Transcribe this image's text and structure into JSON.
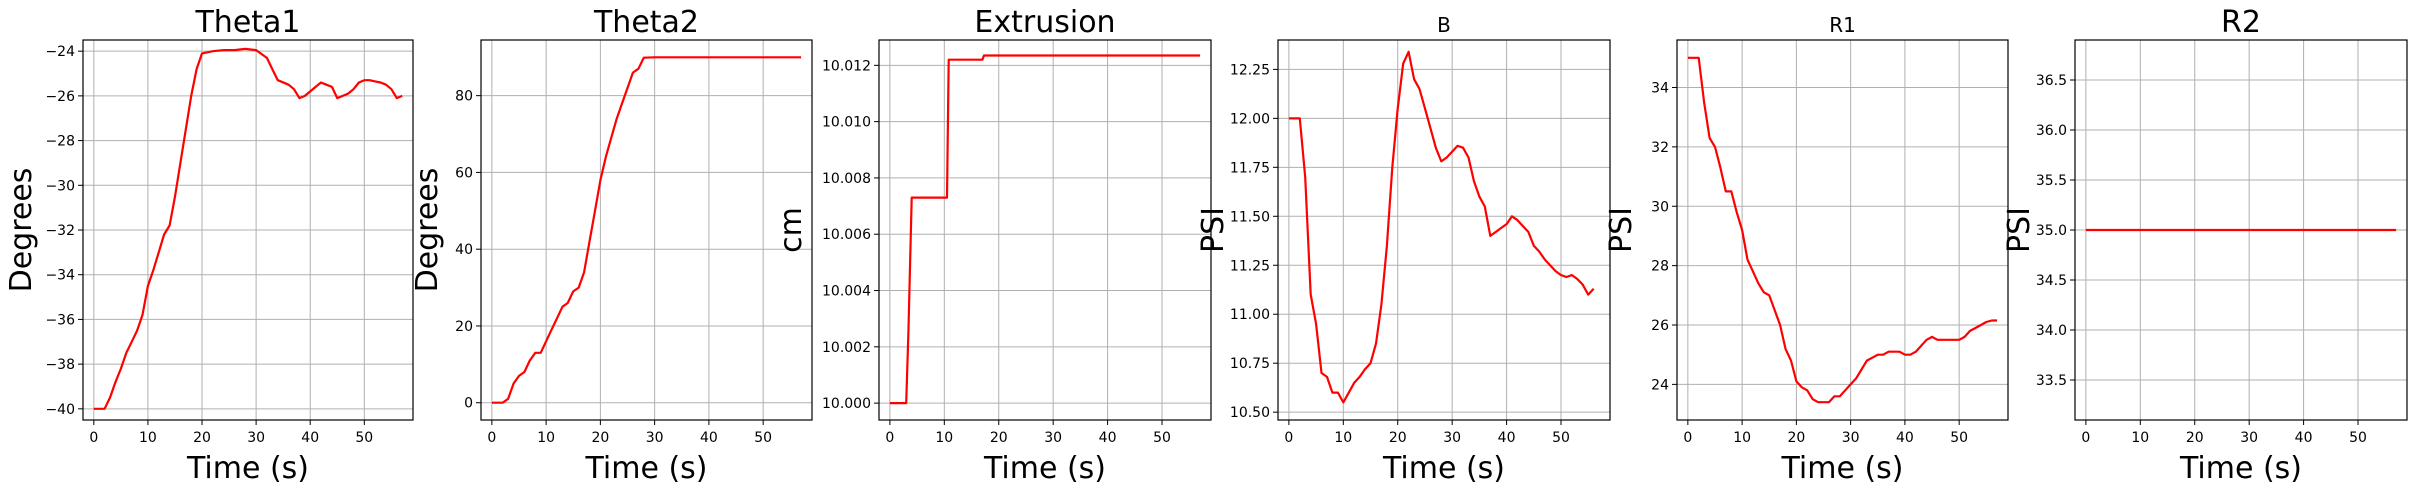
{
  "chart_data": [
    {
      "type": "line",
      "title": "Theta1",
      "xlabel": "Time (s)",
      "ylabel": "Degrees",
      "xlim": [
        -2,
        59
      ],
      "ylim": [
        -40.5,
        -23.5
      ],
      "xticks": [
        0,
        10,
        20,
        30,
        40,
        50
      ],
      "yticks": [
        -40,
        -38,
        -36,
        -34,
        -32,
        -30,
        -28,
        -26,
        -24
      ],
      "ytick_labels": [
        "−40",
        "−38",
        "−36",
        "−34",
        "−32",
        "−30",
        "−28",
        "−26",
        "−24"
      ],
      "grid": true,
      "series": [
        {
          "color": "#ff0000",
          "points": [
            [
              0,
              -40
            ],
            [
              2,
              -40
            ],
            [
              3,
              -39.5
            ],
            [
              4,
              -38.8
            ],
            [
              5,
              -38.2
            ],
            [
              6,
              -37.5
            ],
            [
              7,
              -37
            ],
            [
              8,
              -36.5
            ],
            [
              9,
              -35.8
            ],
            [
              10,
              -34.5
            ],
            [
              11,
              -33.8
            ],
            [
              12,
              -33
            ],
            [
              13,
              -32.2
            ],
            [
              14,
              -31.8
            ],
            [
              15,
              -30.5
            ],
            [
              16,
              -29
            ],
            [
              17,
              -27.5
            ],
            [
              18,
              -26
            ],
            [
              19,
              -24.8
            ],
            [
              20,
              -24.1
            ],
            [
              22,
              -24
            ],
            [
              24,
              -23.95
            ],
            [
              26,
              -23.95
            ],
            [
              28,
              -23.9
            ],
            [
              30,
              -23.95
            ],
            [
              32,
              -24.3
            ],
            [
              33,
              -24.8
            ],
            [
              34,
              -25.3
            ],
            [
              36,
              -25.5
            ],
            [
              37,
              -25.7
            ],
            [
              38,
              -26.1
            ],
            [
              39,
              -26.0
            ],
            [
              40,
              -25.8
            ],
            [
              41,
              -25.6
            ],
            [
              42,
              -25.4
            ],
            [
              43,
              -25.5
            ],
            [
              44,
              -25.6
            ],
            [
              45,
              -26.1
            ],
            [
              46,
              -26.0
            ],
            [
              47,
              -25.9
            ],
            [
              48,
              -25.7
            ],
            [
              49,
              -25.4
            ],
            [
              50,
              -25.3
            ],
            [
              51,
              -25.3
            ],
            [
              52,
              -25.35
            ],
            [
              53,
              -25.4
            ],
            [
              54,
              -25.5
            ],
            [
              55,
              -25.7
            ],
            [
              56,
              -26.1
            ],
            [
              57,
              -26.0
            ]
          ]
        }
      ]
    },
    {
      "type": "line",
      "title": "Theta2",
      "xlabel": "Time (s)",
      "ylabel": "Degrees",
      "xlim": [
        -2,
        59
      ],
      "ylim": [
        -4.5,
        94.5
      ],
      "xticks": [
        0,
        10,
        20,
        30,
        40,
        50
      ],
      "yticks": [
        0,
        20,
        40,
        60,
        80
      ],
      "ytick_labels": [
        "0",
        "20",
        "40",
        "60",
        "80"
      ],
      "grid": true,
      "series": [
        {
          "color": "#ff0000",
          "points": [
            [
              0,
              0
            ],
            [
              2,
              0
            ],
            [
              3,
              1
            ],
            [
              4,
              5
            ],
            [
              5,
              7
            ],
            [
              6,
              8
            ],
            [
              7,
              11
            ],
            [
              8,
              13
            ],
            [
              9,
              13
            ],
            [
              10,
              16
            ],
            [
              11,
              19
            ],
            [
              12,
              22
            ],
            [
              13,
              25
            ],
            [
              14,
              26
            ],
            [
              15,
              29
            ],
            [
              16,
              30
            ],
            [
              17,
              34
            ],
            [
              18,
              42
            ],
            [
              19,
              50
            ],
            [
              20,
              58
            ],
            [
              21,
              64
            ],
            [
              22,
              69
            ],
            [
              23,
              74
            ],
            [
              24,
              78
            ],
            [
              25,
              82
            ],
            [
              26,
              86
            ],
            [
              27,
              87
            ],
            [
              28,
              89.9
            ],
            [
              30,
              90
            ],
            [
              35,
              90
            ],
            [
              40,
              90
            ],
            [
              45,
              90
            ],
            [
              50,
              90
            ],
            [
              55,
              90
            ],
            [
              57,
              90
            ]
          ]
        }
      ]
    },
    {
      "type": "line",
      "title": "Extrusion",
      "xlabel": "Time (s)",
      "ylabel": "cm",
      "xlim": [
        -2,
        59
      ],
      "ylim": [
        9.9994,
        10.0129
      ],
      "xticks": [
        0,
        10,
        20,
        30,
        40,
        50
      ],
      "yticks": [
        10.0,
        10.002,
        10.004,
        10.006,
        10.008,
        10.01,
        10.012
      ],
      "ytick_labels": [
        "10.000",
        "10.002",
        "10.004",
        "10.006",
        "10.008",
        "10.010",
        "10.012"
      ],
      "grid": true,
      "series": [
        {
          "color": "#ff0000",
          "points": [
            [
              0,
              10.0
            ],
            [
              3,
              10.0
            ],
            [
              3.4,
              10.0025
            ],
            [
              4,
              10.0073
            ],
            [
              10.5,
              10.0073
            ],
            [
              10.8,
              10.0122
            ],
            [
              17,
              10.0122
            ],
            [
              17.3,
              10.01235
            ],
            [
              57,
              10.01235
            ]
          ]
        }
      ]
    },
    {
      "type": "line",
      "title": "B",
      "xlabel": "Time (s)",
      "ylabel": "PSI",
      "xlim": [
        -2,
        59
      ],
      "ylim": [
        10.46,
        12.4
      ],
      "xticks": [
        0,
        10,
        20,
        30,
        40,
        50
      ],
      "yticks": [
        10.5,
        10.75,
        11.0,
        11.25,
        11.5,
        11.75,
        12.0,
        12.25
      ],
      "ytick_labels": [
        "10.50",
        "10.75",
        "11.00",
        "11.25",
        "11.50",
        "11.75",
        "12.00",
        "12.25"
      ],
      "grid": true,
      "series": [
        {
          "color": "#ff0000",
          "points": [
            [
              0,
              12.0
            ],
            [
              2,
              12.0
            ],
            [
              3,
              11.7
            ],
            [
              4,
              11.1
            ],
            [
              5,
              10.95
            ],
            [
              6,
              10.7
            ],
            [
              7,
              10.68
            ],
            [
              8,
              10.6
            ],
            [
              9,
              10.6
            ],
            [
              10,
              10.55
            ],
            [
              11,
              10.6
            ],
            [
              12,
              10.65
            ],
            [
              13,
              10.68
            ],
            [
              14,
              10.72
            ],
            [
              15,
              10.75
            ],
            [
              16,
              10.85
            ],
            [
              17,
              11.05
            ],
            [
              18,
              11.35
            ],
            [
              19,
              11.75
            ],
            [
              20,
              12.05
            ],
            [
              21,
              12.28
            ],
            [
              22,
              12.34
            ],
            [
              23,
              12.2
            ],
            [
              24,
              12.15
            ],
            [
              25,
              12.05
            ],
            [
              26,
              11.95
            ],
            [
              27,
              11.85
            ],
            [
              28,
              11.78
            ],
            [
              29,
              11.8
            ],
            [
              30,
              11.83
            ],
            [
              31,
              11.86
            ],
            [
              32,
              11.85
            ],
            [
              33,
              11.8
            ],
            [
              34,
              11.68
            ],
            [
              35,
              11.6
            ],
            [
              36,
              11.55
            ],
            [
              37,
              11.4
            ],
            [
              38,
              11.42
            ],
            [
              39,
              11.44
            ],
            [
              40,
              11.46
            ],
            [
              41,
              11.5
            ],
            [
              42,
              11.48
            ],
            [
              43,
              11.45
            ],
            [
              44,
              11.42
            ],
            [
              45,
              11.35
            ],
            [
              46,
              11.32
            ],
            [
              47,
              11.28
            ],
            [
              48,
              11.25
            ],
            [
              49,
              11.22
            ],
            [
              50,
              11.2
            ],
            [
              51,
              11.19
            ],
            [
              52,
              11.2
            ],
            [
              53,
              11.18
            ],
            [
              54,
              11.15
            ],
            [
              55,
              11.1
            ],
            [
              56,
              11.13
            ]
          ]
        }
      ]
    },
    {
      "type": "line",
      "title": "R1",
      "xlabel": "Time (s)",
      "ylabel": "PSI",
      "xlim": [
        -2,
        59
      ],
      "ylim": [
        22.8,
        35.6
      ],
      "xticks": [
        0,
        10,
        20,
        30,
        40,
        50
      ],
      "yticks": [
        24,
        26,
        28,
        30,
        32,
        34
      ],
      "ytick_labels": [
        "24",
        "26",
        "28",
        "30",
        "32",
        "34"
      ],
      "grid": true,
      "series": [
        {
          "color": "#ff0000",
          "points": [
            [
              0,
              35
            ],
            [
              2,
              35
            ],
            [
              3,
              33.5
            ],
            [
              4,
              32.3
            ],
            [
              5,
              32
            ],
            [
              6,
              31.3
            ],
            [
              7,
              30.5
            ],
            [
              8,
              30.5
            ],
            [
              9,
              29.8
            ],
            [
              10,
              29.2
            ],
            [
              11,
              28.2
            ],
            [
              12,
              27.8
            ],
            [
              13,
              27.4
            ],
            [
              14,
              27.1
            ],
            [
              15,
              27.0
            ],
            [
              16,
              26.5
            ],
            [
              17,
              26.0
            ],
            [
              18,
              25.2
            ],
            [
              19,
              24.8
            ],
            [
              20,
              24.1
            ],
            [
              21,
              23.9
            ],
            [
              22,
              23.8
            ],
            [
              23,
              23.5
            ],
            [
              24,
              23.4
            ],
            [
              25,
              23.4
            ],
            [
              26,
              23.4
            ],
            [
              27,
              23.6
            ],
            [
              28,
              23.6
            ],
            [
              29,
              23.8
            ],
            [
              30,
              24.0
            ],
            [
              31,
              24.2
            ],
            [
              32,
              24.5
            ],
            [
              33,
              24.8
            ],
            [
              34,
              24.9
            ],
            [
              35,
              25.0
            ],
            [
              36,
              25.0
            ],
            [
              37,
              25.1
            ],
            [
              38,
              25.1
            ],
            [
              39,
              25.1
            ],
            [
              40,
              25.0
            ],
            [
              41,
              25.0
            ],
            [
              42,
              25.1
            ],
            [
              43,
              25.3
            ],
            [
              44,
              25.5
            ],
            [
              45,
              25.6
            ],
            [
              46,
              25.5
            ],
            [
              47,
              25.5
            ],
            [
              48,
              25.5
            ],
            [
              49,
              25.5
            ],
            [
              50,
              25.5
            ],
            [
              51,
              25.6
            ],
            [
              52,
              25.8
            ],
            [
              53,
              25.9
            ],
            [
              54,
              26.0
            ],
            [
              55,
              26.1
            ],
            [
              56,
              26.15
            ],
            [
              57,
              26.15
            ]
          ]
        }
      ]
    },
    {
      "type": "line",
      "title": "R2",
      "xlabel": "Time (s)",
      "ylabel": "PSI",
      "xlim": [
        -2,
        59
      ],
      "ylim": [
        33.1,
        36.9
      ],
      "xticks": [
        0,
        10,
        20,
        30,
        40,
        50
      ],
      "yticks": [
        33.5,
        34.0,
        34.5,
        35.0,
        35.5,
        36.0,
        36.5
      ],
      "ytick_labels": [
        "33.5",
        "34.0",
        "34.5",
        "35.0",
        "35.5",
        "36.0",
        "36.5"
      ],
      "grid": true,
      "series": [
        {
          "color": "#ff0000",
          "points": [
            [
              0,
              35.0
            ],
            [
              57,
              35.0
            ]
          ]
        }
      ]
    }
  ]
}
